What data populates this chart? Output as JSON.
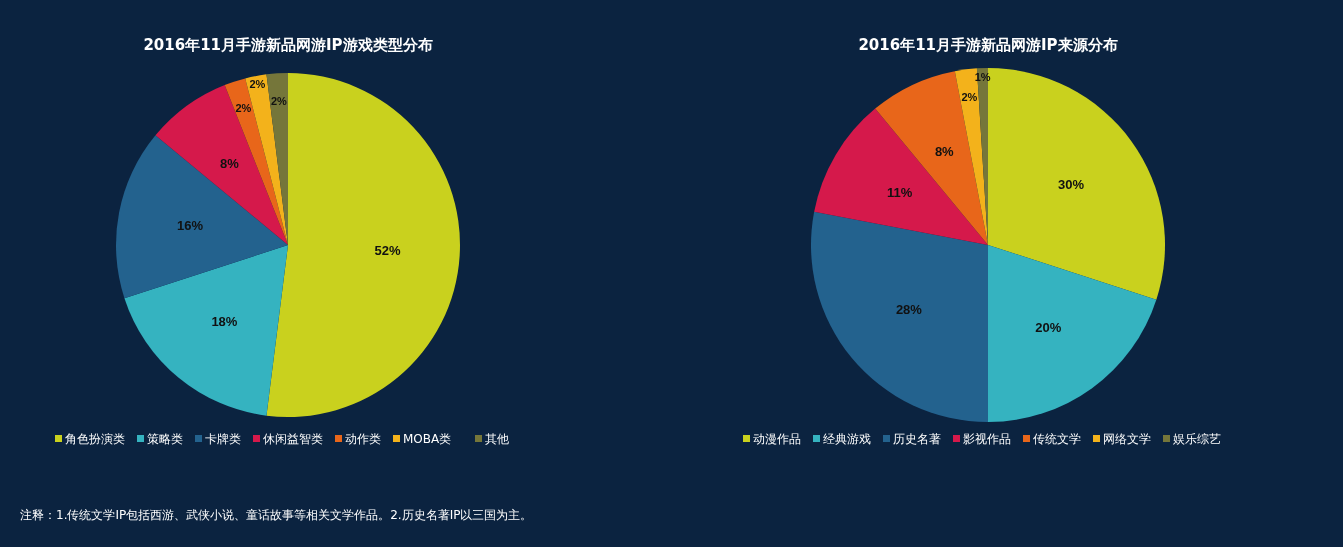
{
  "chart_data": [
    {
      "type": "pie",
      "title": "2016年11月手游新品网游IP游戏类型分布",
      "categories": [
        "角色扮演类",
        "策略类",
        "卡牌类",
        "休闲益智类",
        "动作类",
        "MOBA类",
        "其他"
      ],
      "values": [
        52,
        18,
        16,
        8,
        2,
        2,
        2
      ],
      "colors": [
        "#c9d11e",
        "#35b3c0",
        "#23628e",
        "#d5194b",
        "#e8661a",
        "#f3b21b",
        "#75763a"
      ],
      "value_labels": [
        "52%",
        "18%",
        "16%",
        "8%",
        "2%",
        "2%",
        "2%"
      ],
      "legend": "bottom",
      "annotations": [
        "注释：1.传统文学IP包括西游、武侠小说、童话故事等相关文学作品。2.历史名著IP以三国为主。"
      ]
    },
    {
      "type": "pie",
      "title": "2016年11月手游新品网游IP来源分布",
      "categories": [
        "动漫作品",
        "经典游戏",
        "历史名著",
        "影视作品",
        "传统文学",
        "网络文学",
        "娱乐综艺"
      ],
      "values": [
        30,
        20,
        28,
        11,
        8,
        2,
        1
      ],
      "colors": [
        "#c9d11e",
        "#35b3c0",
        "#23628e",
        "#d5194b",
        "#e8661a",
        "#f3b21b",
        "#75763a"
      ],
      "value_labels": [
        "30%",
        "20%",
        "28%",
        "11%",
        "8%",
        "2%",
        "1%"
      ],
      "legend": "bottom"
    }
  ]
}
